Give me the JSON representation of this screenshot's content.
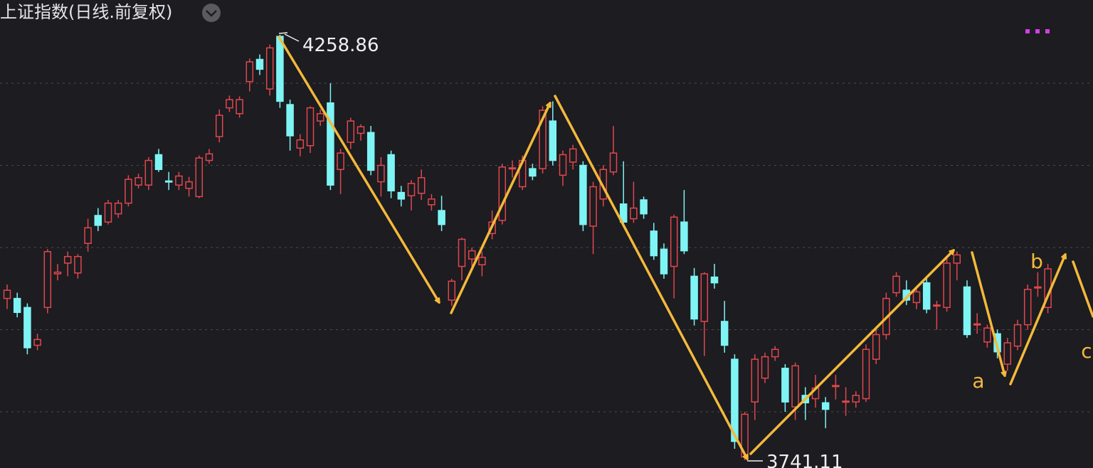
{
  "chart_data": {
    "type": "candlestick",
    "title": "上证指数(日线.前复权)",
    "open": [
      3938,
      3938,
      3927,
      3881,
      3927,
      3968,
      3981,
      3969,
      4005,
      4039,
      4031,
      4041,
      4054,
      4076,
      4076,
      4113,
      4081,
      4076,
      4072,
      4062,
      4106,
      4135,
      4170,
      4163,
      4202,
      4229,
      4193,
      4257,
      4174,
      4121,
      4124,
      4154,
      4176,
      4095,
      4128,
      4139,
      4140,
      4080,
      4113,
      4067,
      4063,
      4066,
      4052,
      4045,
      3936,
      3977,
      3986,
      3979,
      4017,
      4033,
      4096,
      4074,
      4096,
      4096,
      4154,
      4088,
      4104,
      4100,
      4026,
      4059,
      4092,
      4053,
      4035,
      4058,
      4020,
      3998,
      3977,
      4031,
      3965,
      3910,
      3964,
      3910,
      3864,
      3745,
      3812,
      3841,
      3867,
      3853,
      3806,
      3820,
      3816,
      3811,
      3831,
      3812,
      3812,
      3816,
      3864,
      3894,
      3945,
      3948,
      3933,
      3957,
      3929,
      3927,
      3981,
      3952,
      3906,
      3885,
      3895,
      3858,
      3880,
      3906,
      3951,
      3927
    ],
    "high": [
      3955,
      3945,
      3932,
      3895,
      3998,
      3980,
      3995,
      3992,
      4035,
      4048,
      4058,
      4058,
      4088,
      4090,
      4110,
      4120,
      4092,
      4092,
      4086,
      4112,
      4120,
      4168,
      4185,
      4184,
      4230,
      4235,
      4247,
      4258.86,
      4180,
      4138,
      4172,
      4168,
      4200,
      4120,
      4158,
      4150,
      4148,
      4110,
      4118,
      4075,
      4082,
      4095,
      4065,
      4063,
      3962,
      4012,
      4000,
      3995,
      4045,
      4102,
      4106,
      4112,
      4102,
      4172,
      4178,
      4118,
      4125,
      4105,
      4080,
      4100,
      4148,
      4105,
      4080,
      4062,
      4030,
      4005,
      4040,
      4070,
      3975,
      3970,
      3980,
      3935,
      3870,
      3800,
      3870,
      3872,
      3880,
      3858,
      3860,
      3830,
      3845,
      3818,
      3845,
      3830,
      3825,
      3882,
      3900,
      3945,
      3970,
      3960,
      3952,
      3962,
      3935,
      3990,
      3995,
      3960,
      3920,
      3906,
      3900,
      3890,
      3912,
      3955,
      3970,
      3980
    ],
    "low": [
      3925,
      3915,
      3870,
      3875,
      3920,
      3960,
      3965,
      3962,
      3995,
      4020,
      4028,
      4036,
      4050,
      4072,
      4070,
      4092,
      4070,
      4070,
      4062,
      4060,
      4102,
      4128,
      4165,
      4158,
      4190,
      4210,
      4185,
      4170,
      4118,
      4111,
      4115,
      4148,
      4070,
      4065,
      4120,
      4130,
      4088,
      4062,
      4060,
      4050,
      4045,
      4058,
      4045,
      4020,
      3929,
      3960,
      3975,
      3965,
      4010,
      4028,
      4085,
      4070,
      4082,
      4090,
      4100,
      4075,
      4095,
      4020,
      3992,
      4050,
      4088,
      4025,
      4030,
      4035,
      3985,
      3962,
      3938,
      3992,
      3905,
      3868,
      3950,
      3872,
      3755,
      3741.11,
      3790,
      3835,
      3862,
      3800,
      3790,
      3790,
      3805,
      3780,
      3815,
      3795,
      3805,
      3812,
      3858,
      3888,
      3940,
      3930,
      3925,
      3920,
      3900,
      3922,
      3960,
      3890,
      3895,
      3878,
      3865,
      3850,
      3875,
      3900,
      3940,
      3920
    ],
    "close": [
      3948,
      3921,
      3878,
      3888,
      3995,
      3970,
      3989,
      3989,
      4024,
      4027,
      4054,
      4054,
      4083,
      4085,
      4106,
      4095,
      4080,
      4087,
      4080,
      4109,
      4114,
      4161,
      4180,
      4180,
      4226,
      4217,
      4243,
      4178,
      4136,
      4131,
      4170,
      4163,
      4076,
      4115,
      4154,
      4147,
      4094,
      4100,
      4069,
      4059,
      4078,
      4085,
      4059,
      4028,
      3959,
      4010,
      3996,
      3988,
      4031,
      4098,
      4097,
      4106,
      4087,
      4167,
      4106,
      4113,
      4120,
      4028,
      4074,
      4095,
      4115,
      4031,
      4048,
      4041,
      3990,
      3968,
      4037,
      3996,
      3913,
      3968,
      3957,
      3881,
      3764,
      3797,
      3864,
      3867,
      3876,
      3812,
      3856,
      3811,
      3829,
      3803,
      3832,
      3813,
      3820,
      3876,
      3894,
      3938,
      3965,
      3936,
      3946,
      3925,
      3930,
      3981,
      3991,
      3894,
      3907,
      3902,
      3873,
      3884,
      3906,
      3949,
      3952,
      3974
    ],
    "up_color": "#e0474c",
    "down_color": "#7ff4f4",
    "ylim": [
      3731.6,
      4301.3
    ],
    "yticks": [
      3800,
      3900,
      4000,
      4100,
      4200
    ],
    "grid": true,
    "wave_labels": [
      "a",
      "b",
      "c"
    ]
  }
}
